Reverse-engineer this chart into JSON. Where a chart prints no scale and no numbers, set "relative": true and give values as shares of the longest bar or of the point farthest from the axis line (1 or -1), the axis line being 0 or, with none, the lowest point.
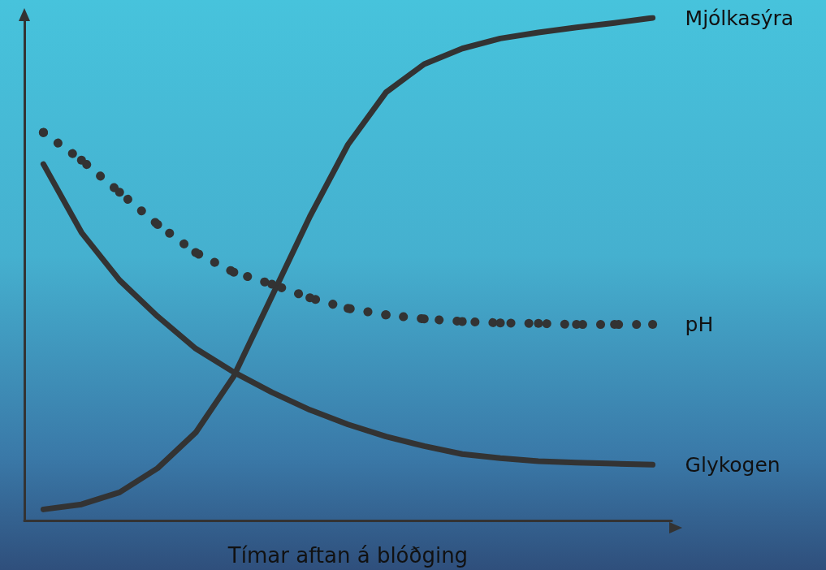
{
  "chart_data": {
    "type": "line",
    "relative": true,
    "xlabel": "Tímar aftan á blóðging",
    "categories": [
      null,
      null,
      null,
      null,
      null,
      null,
      null,
      null,
      null,
      null,
      null,
      null,
      null,
      null,
      null,
      null,
      null
    ],
    "series": [
      {
        "name": "Mjólkasýra",
        "color": "#333333",
        "line_style": "solid",
        "marker": "none",
        "values": [
          0.022,
          0.032,
          0.056,
          0.104,
          0.175,
          0.287,
          0.446,
          0.605,
          0.748,
          0.852,
          0.908,
          0.939,
          0.959,
          0.971,
          0.981,
          0.99,
          1.0
        ]
      },
      {
        "name": "pH",
        "color": "#333333",
        "line_style": "dotted",
        "marker": "circle",
        "values": [
          0.772,
          0.717,
          0.653,
          0.589,
          0.533,
          0.494,
          0.47,
          0.443,
          0.422,
          0.409,
          0.401,
          0.396,
          0.393,
          0.392,
          0.39,
          0.39,
          0.39
        ]
      },
      {
        "name": "Glykogen",
        "color": "#333333",
        "line_style": "solid",
        "marker": "none",
        "values": [
          0.709,
          0.573,
          0.478,
          0.406,
          0.342,
          0.295,
          0.255,
          0.22,
          0.191,
          0.167,
          0.148,
          0.132,
          0.124,
          0.118,
          0.115,
          0.113,
          0.111
        ]
      }
    ],
    "legend": false,
    "grid": false
  }
}
